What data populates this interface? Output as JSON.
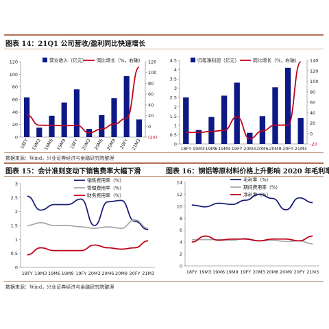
{
  "figures": [
    {
      "title": "图表 14：21Q1 公司营收/盈利同比快速增长",
      "source": "数据来源：Wind，兴业证券经济与金融研究院整理"
    },
    {
      "title": "图表 15：会计准则变动下销售费率大幅下滑",
      "source": "数据来源：Wind，兴业证券经济与金融研究院整理"
    },
    {
      "title": "图表 16：铜铝等原材料价格上升影响 2020 年毛利率"
    }
  ],
  "colors": {
    "bar": "#0d1a85",
    "line_red": "#c0001a",
    "line_navy": "#1a1f75",
    "line_gray": "#a8a8a8",
    "axis": "#999999",
    "rule": "#b07050"
  },
  "chart_data": [
    {
      "type": "bar",
      "categories": [
        "18FY",
        "19M3",
        "19M6",
        "19M9",
        "19FY",
        "20M3",
        "20M6",
        "20M9",
        "20FY",
        "21M3"
      ],
      "series": [
        {
          "name": "营业收入（亿元）",
          "kind": "bar",
          "axis": "left",
          "values": [
            63,
            15,
            34,
            55,
            76,
            13,
            35,
            62,
            97,
            28
          ]
        },
        {
          "name": "同比增长（%，右轴）",
          "kind": "line",
          "axis": "right",
          "values": [
            21,
            2,
            2,
            1,
            2,
            -12,
            -5,
            4,
            15,
            110
          ]
        }
      ],
      "left_ylim": [
        0,
        120
      ],
      "left_ticks": [
        0,
        20,
        40,
        60,
        80,
        100,
        120
      ],
      "right_ylim": [
        -20,
        120
      ],
      "right_ticks": [
        "(20)",
        "0",
        "20",
        "40",
        "60",
        "80",
        "100",
        "120"
      ],
      "legend": "top",
      "grid": false
    },
    {
      "type": "bar",
      "categories": [
        "18FY",
        "19M3",
        "19M6",
        "19M9",
        "19FY",
        "20M3",
        "20M6",
        "20M9",
        "20FY",
        "21M3"
      ],
      "series": [
        {
          "name": "归母净利润（亿元）",
          "kind": "bar",
          "axis": "left",
          "values": [
            2.5,
            0.75,
            1.45,
            2.6,
            3.3,
            0.6,
            1.5,
            3.05,
            4.1,
            1.4
          ]
        },
        {
          "name": "同比增长（%，右轴）",
          "kind": "line",
          "axis": "right",
          "values": [
            2,
            2,
            4,
            6,
            32,
            -10,
            5,
            16,
            16,
            137
          ]
        }
      ],
      "left_ylim": [
        0,
        4.5
      ],
      "left_ticks": [
        "0",
        "0.5",
        "1",
        "1.5",
        "2",
        "2.5",
        "3",
        "3.5",
        "4",
        "4.5"
      ],
      "right_ylim": [
        -20,
        140
      ],
      "right_ticks": [
        "-20",
        "0",
        "20",
        "40",
        "60",
        "80",
        "100",
        "120",
        "140"
      ],
      "legend": "top",
      "grid": false
    },
    {
      "type": "line",
      "categories": [
        "18FY",
        "19M3",
        "19M6",
        "19M9",
        "19FY",
        "20M3",
        "20M6",
        "20M9",
        "20FY",
        "21M3"
      ],
      "tick_labels": [
        "18FY",
        "19M3",
        "19M6",
        "19M9",
        "19FY",
        "20M3",
        "20M6",
        "20M9",
        "20FY",
        "21M3"
      ],
      "series": [
        {
          "name": "销售费用率（%）",
          "color": "#1a1f75",
          "values": [
            2.55,
            2.05,
            2.25,
            2.25,
            2.45,
            1.5,
            2.35,
            2.4,
            1.65,
            1.35
          ]
        },
        {
          "name": "管理费用率（%）",
          "color": "#a8a8a8",
          "values": [
            1.5,
            1.6,
            1.5,
            1.5,
            1.45,
            1.4,
            1.45,
            1.4,
            1.7,
            1.4
          ]
        },
        {
          "name": "财务费用率（%）",
          "color": "#c0001a",
          "values": [
            0.45,
            0.7,
            0.6,
            0.6,
            0.6,
            0.8,
            0.7,
            0.65,
            0.7,
            0.95
          ]
        }
      ],
      "ylim": [
        0,
        3
      ],
      "yticks": [
        0,
        0.5,
        1,
        1.5,
        2,
        2.5,
        3
      ],
      "legend": "top",
      "grid": false
    },
    {
      "type": "line",
      "categories": [
        "18FY",
        "19M3",
        "19M6",
        "19M9",
        "19FY",
        "20M3",
        "20M6",
        "20M9",
        "20FY",
        "21M3"
      ],
      "tick_labels": [
        "18FY",
        "19M3",
        "19M6",
        "19M9",
        "19FY",
        "20M3",
        "20M6",
        "20M9",
        "20FY",
        "21M3"
      ],
      "series": [
        {
          "name": "毛利率（%）",
          "color": "#1a1f75",
          "values": [
            10.2,
            9.9,
            10.5,
            10.3,
            11.0,
            12.0,
            11.3,
            9.4,
            11.4,
            10.6
          ]
        },
        {
          "name": "期间费用率（%）",
          "color": "#a8a8a8",
          "values": [
            4.4,
            4.4,
            4.4,
            4.3,
            4.6,
            4.2,
            4.3,
            4.1,
            4.2,
            3.7
          ]
        },
        {
          "name": "净利率（%）",
          "color": "#c0001a",
          "values": [
            4.0,
            5.0,
            4.3,
            4.5,
            4.5,
            4.2,
            4.5,
            4.5,
            4.2,
            5.0
          ]
        }
      ],
      "ylim": [
        0,
        14
      ],
      "yticks": [
        0,
        2,
        4,
        6,
        8,
        10,
        12,
        14
      ],
      "legend": "top",
      "grid": false
    }
  ]
}
